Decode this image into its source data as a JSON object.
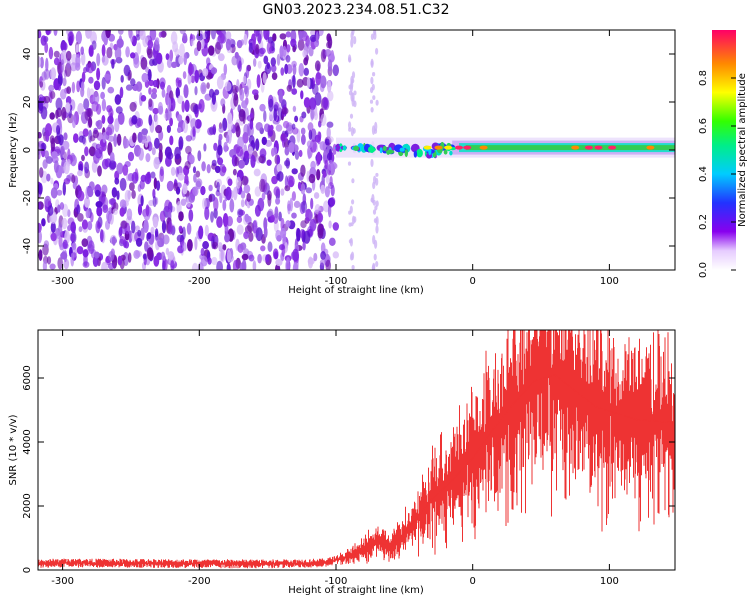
{
  "title": "GN03.2023.234.08.51.C32",
  "chart_data": [
    {
      "type": "heatmap",
      "xlabel": "Height of straight line (km)",
      "ylabel": "Frequency (Hz)",
      "xlim": [
        -318,
        148
      ],
      "ylim": [
        -50,
        50
      ],
      "xticks": [
        -300,
        -200,
        -100,
        0,
        100
      ],
      "yticks": [
        -40,
        -20,
        0,
        20,
        40
      ],
      "colorbar": {
        "label": "Normalized spectral amplitude",
        "range": [
          0,
          1
        ],
        "ticks": [
          0.0,
          0.2,
          0.4,
          0.6,
          0.8
        ]
      },
      "band_center_hz": 1,
      "noise_region_km": [
        -318,
        -100
      ],
      "grid": false
    },
    {
      "type": "line",
      "xlabel": "Height of straight line (km)",
      "ylabel": "SNR (10 * v/v)",
      "xlim": [
        -318,
        148
      ],
      "ylim": [
        0,
        7500
      ],
      "xticks": [
        -300,
        -200,
        -100,
        0,
        100
      ],
      "yticks": [
        0,
        2000,
        4000,
        6000
      ],
      "color": "#ee3333",
      "x": [
        -318,
        -300,
        -250,
        -200,
        -150,
        -110,
        -95,
        -80,
        -70,
        -60,
        -45,
        -30,
        -15,
        0,
        15,
        30,
        45,
        60,
        75,
        90,
        105,
        120,
        135,
        148
      ],
      "y": [
        200,
        220,
        210,
        200,
        190,
        220,
        350,
        600,
        900,
        700,
        1400,
        2200,
        2800,
        3500,
        4400,
        5200,
        5900,
        6100,
        5600,
        5100,
        4900,
        4700,
        4650,
        4600
      ],
      "grid": false
    }
  ]
}
